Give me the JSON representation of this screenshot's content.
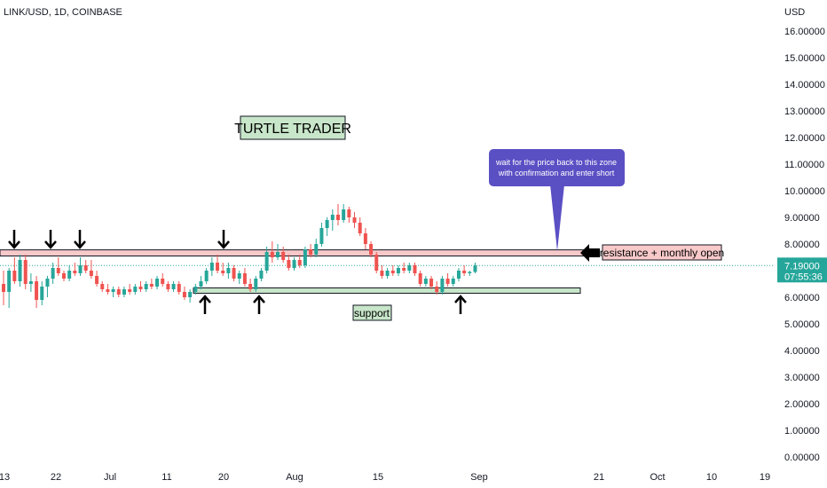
{
  "header": {
    "symbol": "LINK/USD, 1D, COINBASE",
    "currency": "USD"
  },
  "price_tag": {
    "price": "7.19000",
    "countdown": "07:55:36"
  },
  "annotations": {
    "title": "TURTLE TRADER",
    "callout": [
      "wait for the price back to this zone",
      "with confirmation and enter short"
    ],
    "resistance_label": "resistance + monthly open",
    "support_label": "support"
  },
  "colors": {
    "up": "#26a69a",
    "down": "#ef5350",
    "resistance_fill": "#f8c9c9",
    "support_fill": "#c8e6c9",
    "callout_fill": "#5b4fc4",
    "last_price_line": "#26a69a"
  },
  "chart_data": {
    "type": "candlestick",
    "symbol": "LINK/USD",
    "interval": "1D",
    "exchange": "COINBASE",
    "y_unit": "USD",
    "ylim": [
      0,
      17
    ],
    "y_ticks": [
      "16.00000",
      "15.00000",
      "14.00000",
      "13.00000",
      "12.00000",
      "11.00000",
      "10.00000",
      "9.00000",
      "8.00000",
      "7.00000",
      "6.00000",
      "5.00000",
      "4.00000",
      "3.00000",
      "2.00000",
      "1.00000",
      "0.00000"
    ],
    "x_ticks": [
      "13",
      "22",
      "Jul",
      "11",
      "20",
      "Aug",
      "15",
      "Sep",
      "21",
      "Oct",
      "10",
      "19"
    ],
    "last_price": 7.19,
    "zones": [
      {
        "name": "resistance + monthly open",
        "low": 7.55,
        "high": 7.78
      },
      {
        "name": "support",
        "low": 6.15,
        "high": 6.35
      }
    ],
    "candles": [
      {
        "o": 6.5,
        "h": 7.0,
        "l": 5.7,
        "c": 6.2
      },
      {
        "o": 6.2,
        "h": 7.1,
        "l": 5.6,
        "c": 7.0
      },
      {
        "o": 7.0,
        "h": 7.5,
        "l": 6.5,
        "c": 6.6
      },
      {
        "o": 6.6,
        "h": 7.6,
        "l": 6.4,
        "c": 7.4
      },
      {
        "o": 7.4,
        "h": 7.6,
        "l": 6.3,
        "c": 6.5
      },
      {
        "o": 6.5,
        "h": 6.9,
        "l": 6.2,
        "c": 6.6
      },
      {
        "o": 6.6,
        "h": 6.8,
        "l": 5.6,
        "c": 5.9
      },
      {
        "o": 5.9,
        "h": 6.6,
        "l": 5.7,
        "c": 6.4
      },
      {
        "o": 6.4,
        "h": 6.8,
        "l": 6.0,
        "c": 6.7
      },
      {
        "o": 6.7,
        "h": 7.3,
        "l": 6.5,
        "c": 7.1
      },
      {
        "o": 7.1,
        "h": 7.5,
        "l": 6.8,
        "c": 6.9
      },
      {
        "o": 6.9,
        "h": 7.0,
        "l": 6.6,
        "c": 6.7
      },
      {
        "o": 6.7,
        "h": 7.2,
        "l": 6.6,
        "c": 7.0
      },
      {
        "o": 7.0,
        "h": 7.3,
        "l": 6.8,
        "c": 6.9
      },
      {
        "o": 6.9,
        "h": 7.5,
        "l": 6.8,
        "c": 7.2
      },
      {
        "o": 7.2,
        "h": 7.4,
        "l": 6.9,
        "c": 7.0
      },
      {
        "o": 7.0,
        "h": 7.4,
        "l": 6.7,
        "c": 6.8
      },
      {
        "o": 6.8,
        "h": 7.0,
        "l": 6.4,
        "c": 6.5
      },
      {
        "o": 6.5,
        "h": 6.6,
        "l": 6.2,
        "c": 6.3
      },
      {
        "o": 6.3,
        "h": 6.5,
        "l": 6.1,
        "c": 6.2
      },
      {
        "o": 6.2,
        "h": 6.4,
        "l": 6.0,
        "c": 6.3
      },
      {
        "o": 6.3,
        "h": 6.4,
        "l": 6.0,
        "c": 6.1
      },
      {
        "o": 6.1,
        "h": 6.4,
        "l": 6.0,
        "c": 6.3
      },
      {
        "o": 6.3,
        "h": 6.5,
        "l": 6.1,
        "c": 6.2
      },
      {
        "o": 6.2,
        "h": 6.5,
        "l": 6.1,
        "c": 6.4
      },
      {
        "o": 6.4,
        "h": 6.6,
        "l": 6.2,
        "c": 6.3
      },
      {
        "o": 6.3,
        "h": 6.6,
        "l": 6.2,
        "c": 6.5
      },
      {
        "o": 6.5,
        "h": 6.7,
        "l": 6.3,
        "c": 6.4
      },
      {
        "o": 6.4,
        "h": 6.8,
        "l": 6.3,
        "c": 6.7
      },
      {
        "o": 6.7,
        "h": 6.9,
        "l": 6.4,
        "c": 6.5
      },
      {
        "o": 6.5,
        "h": 6.6,
        "l": 6.2,
        "c": 6.3
      },
      {
        "o": 6.3,
        "h": 6.6,
        "l": 6.2,
        "c": 6.5
      },
      {
        "o": 6.5,
        "h": 6.6,
        "l": 6.1,
        "c": 6.2
      },
      {
        "o": 6.2,
        "h": 6.4,
        "l": 5.9,
        "c": 6.0
      },
      {
        "o": 6.0,
        "h": 6.3,
        "l": 5.8,
        "c": 6.2
      },
      {
        "o": 6.2,
        "h": 6.5,
        "l": 6.1,
        "c": 6.4
      },
      {
        "o": 6.4,
        "h": 6.8,
        "l": 6.3,
        "c": 6.6
      },
      {
        "o": 6.6,
        "h": 7.1,
        "l": 6.5,
        "c": 7.0
      },
      {
        "o": 7.0,
        "h": 7.5,
        "l": 6.8,
        "c": 7.3
      },
      {
        "o": 7.3,
        "h": 7.6,
        "l": 6.9,
        "c": 7.0
      },
      {
        "o": 7.0,
        "h": 7.3,
        "l": 6.8,
        "c": 6.9
      },
      {
        "o": 6.9,
        "h": 7.3,
        "l": 6.7,
        "c": 7.1
      },
      {
        "o": 7.1,
        "h": 7.2,
        "l": 6.6,
        "c": 6.7
      },
      {
        "o": 6.7,
        "h": 7.0,
        "l": 6.5,
        "c": 6.9
      },
      {
        "o": 6.9,
        "h": 7.1,
        "l": 6.4,
        "c": 6.5
      },
      {
        "o": 6.5,
        "h": 6.7,
        "l": 6.2,
        "c": 6.3
      },
      {
        "o": 6.3,
        "h": 6.8,
        "l": 6.2,
        "c": 6.7
      },
      {
        "o": 6.7,
        "h": 7.1,
        "l": 6.6,
        "c": 7.0
      },
      {
        "o": 7.0,
        "h": 7.9,
        "l": 6.9,
        "c": 7.7
      },
      {
        "o": 7.7,
        "h": 8.1,
        "l": 7.3,
        "c": 7.5
      },
      {
        "o": 7.5,
        "h": 8.0,
        "l": 7.4,
        "c": 7.7
      },
      {
        "o": 7.7,
        "h": 7.9,
        "l": 7.3,
        "c": 7.4
      },
      {
        "o": 7.4,
        "h": 7.6,
        "l": 7.0,
        "c": 7.1
      },
      {
        "o": 7.1,
        "h": 7.5,
        "l": 7.0,
        "c": 7.4
      },
      {
        "o": 7.4,
        "h": 7.6,
        "l": 7.1,
        "c": 7.2
      },
      {
        "o": 7.2,
        "h": 7.9,
        "l": 7.1,
        "c": 7.8
      },
      {
        "o": 7.8,
        "h": 8.0,
        "l": 7.5,
        "c": 7.6
      },
      {
        "o": 7.6,
        "h": 8.2,
        "l": 7.5,
        "c": 8.0
      },
      {
        "o": 8.0,
        "h": 8.8,
        "l": 7.9,
        "c": 8.6
      },
      {
        "o": 8.6,
        "h": 9.0,
        "l": 8.3,
        "c": 8.9
      },
      {
        "o": 8.9,
        "h": 9.3,
        "l": 8.5,
        "c": 9.1
      },
      {
        "o": 9.1,
        "h": 9.5,
        "l": 8.7,
        "c": 8.9
      },
      {
        "o": 8.9,
        "h": 9.5,
        "l": 8.8,
        "c": 9.3
      },
      {
        "o": 9.3,
        "h": 9.4,
        "l": 8.8,
        "c": 9.0
      },
      {
        "o": 9.0,
        "h": 9.2,
        "l": 8.6,
        "c": 8.8
      },
      {
        "o": 8.8,
        "h": 9.0,
        "l": 8.3,
        "c": 8.4
      },
      {
        "o": 8.4,
        "h": 8.6,
        "l": 7.8,
        "c": 8.0
      },
      {
        "o": 8.0,
        "h": 8.1,
        "l": 7.5,
        "c": 7.6
      },
      {
        "o": 7.6,
        "h": 7.7,
        "l": 6.9,
        "c": 7.0
      },
      {
        "o": 7.0,
        "h": 7.2,
        "l": 6.7,
        "c": 6.8
      },
      {
        "o": 6.8,
        "h": 7.1,
        "l": 6.7,
        "c": 7.0
      },
      {
        "o": 7.0,
        "h": 7.2,
        "l": 6.8,
        "c": 6.9
      },
      {
        "o": 6.9,
        "h": 7.2,
        "l": 6.8,
        "c": 7.1
      },
      {
        "o": 7.1,
        "h": 7.3,
        "l": 6.9,
        "c": 7.0
      },
      {
        "o": 7.0,
        "h": 7.3,
        "l": 6.9,
        "c": 7.2
      },
      {
        "o": 7.2,
        "h": 7.3,
        "l": 6.8,
        "c": 6.9
      },
      {
        "o": 6.9,
        "h": 7.0,
        "l": 6.4,
        "c": 6.5
      },
      {
        "o": 6.5,
        "h": 6.8,
        "l": 6.4,
        "c": 6.7
      },
      {
        "o": 6.7,
        "h": 6.8,
        "l": 6.3,
        "c": 6.4
      },
      {
        "o": 6.4,
        "h": 6.6,
        "l": 6.1,
        "c": 6.2
      },
      {
        "o": 6.2,
        "h": 6.8,
        "l": 6.1,
        "c": 6.7
      },
      {
        "o": 6.7,
        "h": 6.9,
        "l": 6.4,
        "c": 6.5
      },
      {
        "o": 6.5,
        "h": 6.8,
        "l": 6.4,
        "c": 6.7
      },
      {
        "o": 6.7,
        "h": 7.1,
        "l": 6.6,
        "c": 7.0
      },
      {
        "o": 7.0,
        "h": 7.2,
        "l": 6.8,
        "c": 6.9
      },
      {
        "o": 6.9,
        "h": 7.0,
        "l": 6.8,
        "c": 6.95
      },
      {
        "o": 6.95,
        "h": 7.3,
        "l": 6.9,
        "c": 7.19
      }
    ]
  }
}
